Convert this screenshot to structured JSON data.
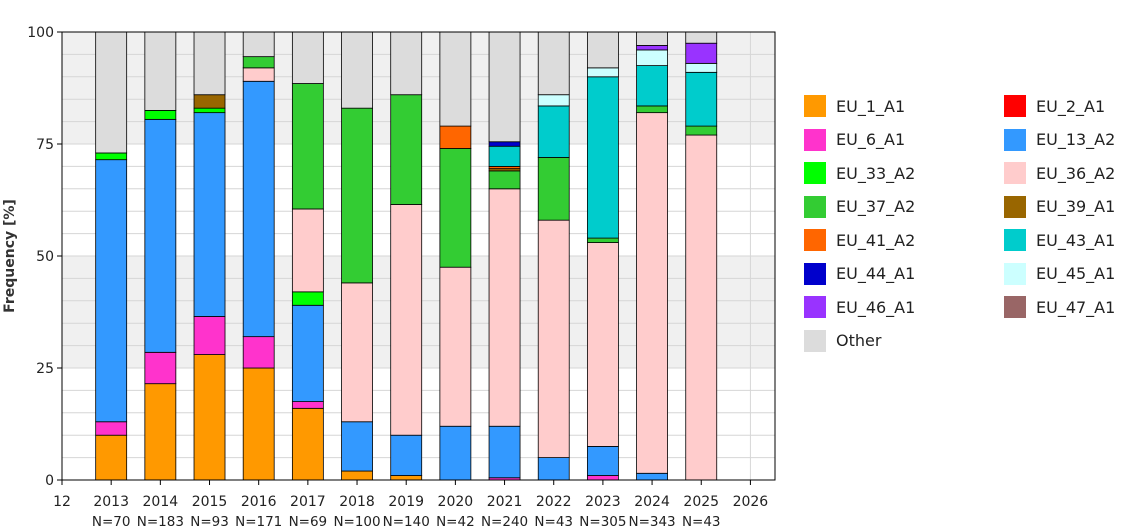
{
  "chart_data": {
    "type": "bar",
    "stacked": true,
    "ylabel": "Frequency [%]",
    "ylim": [
      0,
      100
    ],
    "yticks": [
      "0",
      "25",
      "50",
      "75",
      "100"
    ],
    "xticks": [
      "12",
      "2013",
      "2014",
      "2015",
      "2016",
      "2017",
      "2018",
      "2019",
      "2020",
      "2021",
      "2022",
      "2023",
      "2024",
      "2025",
      "2026"
    ],
    "categories": [
      "2013",
      "2014",
      "2015",
      "2016",
      "2017",
      "2018",
      "2019",
      "2020",
      "2021",
      "2022",
      "2023",
      "2024",
      "2025"
    ],
    "sample_sizes": [
      "N=70",
      "N=183",
      "N=93",
      "N=171",
      "N=69",
      "N=100",
      "N=140",
      "N=42",
      "N=240",
      "N=43",
      "N=305",
      "N=343",
      "N=43"
    ],
    "grid": true,
    "legend_position": "right",
    "series": [
      {
        "name": "EU_1_A1",
        "color": "#FF9900",
        "values": [
          10,
          21.5,
          28,
          25,
          16,
          2,
          1,
          0,
          0,
          0,
          0,
          0,
          0
        ]
      },
      {
        "name": "EU_2_A1",
        "color": "#FF0000",
        "values": [
          0,
          0,
          0,
          0,
          0,
          0,
          0,
          0,
          0,
          0,
          0,
          0,
          0
        ]
      },
      {
        "name": "EU_6_A1",
        "color": "#FF33CC",
        "values": [
          3,
          7,
          8.5,
          7,
          1.5,
          0,
          0,
          0,
          0.5,
          0,
          1,
          0,
          0
        ]
      },
      {
        "name": "EU_13_A2",
        "color": "#3399FF",
        "values": [
          58.5,
          52,
          45.5,
          57,
          21.5,
          11,
          9,
          12,
          11.5,
          5,
          6.5,
          1.5,
          0
        ]
      },
      {
        "name": "EU_33_A2",
        "color": "#00FF00",
        "values": [
          1.5,
          2,
          1,
          0,
          3,
          0,
          0,
          0,
          0,
          0,
          0,
          0,
          0
        ]
      },
      {
        "name": "EU_36_A2",
        "color": "#FFCCCC",
        "values": [
          0,
          0,
          0,
          3,
          18.5,
          31,
          51.5,
          35.5,
          53,
          53,
          45.5,
          80.5,
          77
        ]
      },
      {
        "name": "EU_37_A2",
        "color": "#33CC33",
        "values": [
          0,
          0,
          0,
          2.5,
          28,
          39,
          24.5,
          26.5,
          4,
          14,
          1,
          1.5,
          2
        ]
      },
      {
        "name": "EU_39_A1",
        "color": "#996600",
        "values": [
          0,
          0,
          3,
          0,
          0,
          0,
          0,
          0,
          0.5,
          0,
          0,
          0,
          0
        ]
      },
      {
        "name": "EU_41_A2",
        "color": "#FF6600",
        "values": [
          0,
          0,
          0,
          0,
          0,
          0,
          0,
          5,
          0.5,
          0,
          0,
          0,
          0
        ]
      },
      {
        "name": "EU_43_A1",
        "color": "#00CCCC",
        "values": [
          0,
          0,
          0,
          0,
          0,
          0,
          0,
          0,
          4.5,
          11.5,
          36,
          9,
          12
        ]
      },
      {
        "name": "EU_44_A1",
        "color": "#0000CC",
        "values": [
          0,
          0,
          0,
          0,
          0,
          0,
          0,
          0,
          1,
          0,
          0,
          0,
          0
        ]
      },
      {
        "name": "EU_45_A1",
        "color": "#CCFFFF",
        "values": [
          0,
          0,
          0,
          0,
          0,
          0,
          0,
          0,
          0,
          2.5,
          2,
          3.5,
          2
        ]
      },
      {
        "name": "EU_46_A1",
        "color": "#9933FF",
        "values": [
          0,
          0,
          0,
          0,
          0,
          0,
          0,
          0,
          0,
          0,
          0,
          1,
          4.5
        ]
      },
      {
        "name": "EU_47_A1",
        "color": "#996666",
        "values": [
          0,
          0,
          0,
          0,
          0,
          0,
          0,
          0,
          0,
          0,
          0,
          0,
          0
        ]
      },
      {
        "name": "Other",
        "color": "#DCDCDC",
        "values": [
          27,
          17.5,
          14,
          5.5,
          11.5,
          17,
          14,
          21,
          24.5,
          14,
          8,
          3,
          2.5
        ]
      }
    ]
  },
  "legend": [
    {
      "name": "EU_1_A1",
      "color": "#FF9900"
    },
    {
      "name": "EU_2_A1",
      "color": "#FF0000"
    },
    {
      "name": "EU_6_A1",
      "color": "#FF33CC"
    },
    {
      "name": "EU_13_A2",
      "color": "#3399FF"
    },
    {
      "name": "EU_33_A2",
      "color": "#00FF00"
    },
    {
      "name": "EU_36_A2",
      "color": "#FFCCCC"
    },
    {
      "name": "EU_37_A2",
      "color": "#33CC33"
    },
    {
      "name": "EU_39_A1",
      "color": "#996600"
    },
    {
      "name": "EU_41_A2",
      "color": "#FF6600"
    },
    {
      "name": "EU_43_A1",
      "color": "#00CCCC"
    },
    {
      "name": "EU_44_A1",
      "color": "#0000CC"
    },
    {
      "name": "EU_45_A1",
      "color": "#CCFFFF"
    },
    {
      "name": "EU_46_A1",
      "color": "#9933FF"
    },
    {
      "name": "EU_47_A1",
      "color": "#996666"
    },
    {
      "name": "Other",
      "color": "#DCDCDC"
    }
  ]
}
